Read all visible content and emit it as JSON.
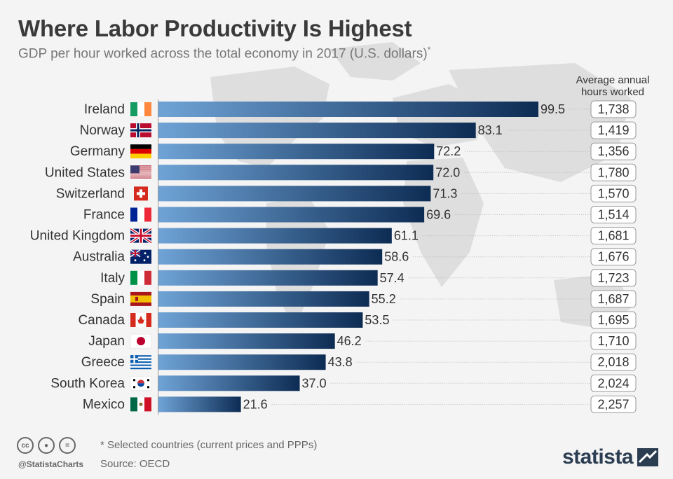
{
  "header": {
    "title": "Where Labor Productivity Is Highest",
    "subtitle": "GDP per hour worked across the total economy in 2017 (U.S. dollars)",
    "subtitle_mark": "*"
  },
  "hours_header": "Average annual hours worked",
  "footer": {
    "footnote": "* Selected countries (current prices and PPPs)",
    "source": "Source: OECD",
    "handle": "@StatistaCharts",
    "brand": "statista",
    "license_icons": [
      "cc-icon",
      "by-icon",
      "equals-icon"
    ]
  },
  "colors": {
    "bar_light": "#6fa3d6",
    "bar_dark": "#0d2c54",
    "map": "#dcdcdc",
    "background": "#f4f4f4"
  },
  "chart_data": {
    "type": "bar",
    "orientation": "horizontal",
    "title": "Where Labor Productivity Is Highest",
    "categories": [
      "Ireland",
      "Norway",
      "Germany",
      "United States",
      "Switzerland",
      "France",
      "United Kingdom",
      "Australia",
      "Italy",
      "Spain",
      "Canada",
      "Japan",
      "Greece",
      "South Korea",
      "Mexico"
    ],
    "values": [
      99.5,
      83.1,
      72.2,
      72.0,
      71.3,
      69.6,
      61.1,
      58.6,
      57.4,
      55.2,
      53.5,
      46.2,
      43.8,
      37.0,
      21.6
    ],
    "value_labels": [
      "99.5",
      "83.1",
      "72.2",
      "72.0",
      "71.3",
      "69.6",
      "61.1",
      "58.6",
      "57.4",
      "55.2",
      "53.5",
      "46.2",
      "43.8",
      "37.0",
      "21.6"
    ],
    "hours": [
      "1,738",
      "1,419",
      "1,356",
      "1,780",
      "1,570",
      "1,514",
      "1,681",
      "1,676",
      "1,723",
      "1,687",
      "1,695",
      "1,710",
      "2,018",
      "2,024",
      "2,257"
    ],
    "flags": [
      "ireland-flag-icon",
      "norway-flag-icon",
      "germany-flag-icon",
      "united-states-flag-icon",
      "switzerland-flag-icon",
      "france-flag-icon",
      "united-kingdom-flag-icon",
      "australia-flag-icon",
      "italy-flag-icon",
      "spain-flag-icon",
      "canada-flag-icon",
      "japan-flag-icon",
      "greece-flag-icon",
      "south-korea-flag-icon",
      "mexico-flag-icon"
    ],
    "xlim": [
      0,
      99.5
    ],
    "grid": false,
    "legend": "none"
  }
}
